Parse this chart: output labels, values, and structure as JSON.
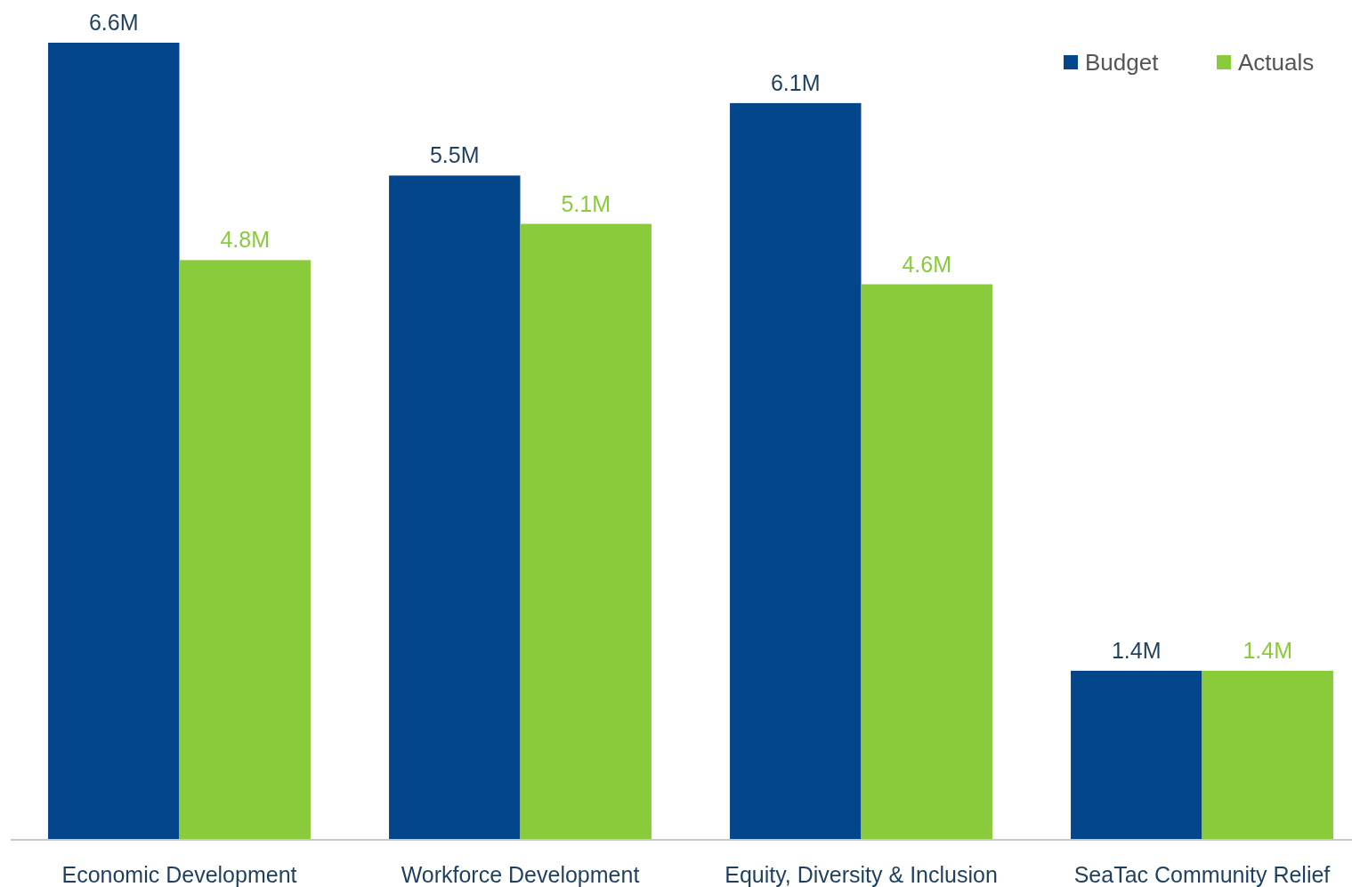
{
  "chart_data": {
    "type": "bar",
    "categories": [
      "Economic Development",
      "Workforce Development",
      "Equity, Diversity & Inclusion",
      "SeaTac Community Relief"
    ],
    "series": [
      {
        "name": "Budget",
        "color": "#03468c",
        "values": [
          6.6,
          5.5,
          6.1,
          1.4
        ],
        "value_labels": [
          "6.6M",
          "5.5M",
          "6.1M",
          "1.4M"
        ]
      },
      {
        "name": "Actuals",
        "color": "#8acb3b",
        "values": [
          4.8,
          5.1,
          4.6,
          1.4
        ],
        "value_labels": [
          "4.8M",
          "5.1M",
          "4.6M",
          "1.4M"
        ]
      }
    ],
    "legend": "top right"
  }
}
